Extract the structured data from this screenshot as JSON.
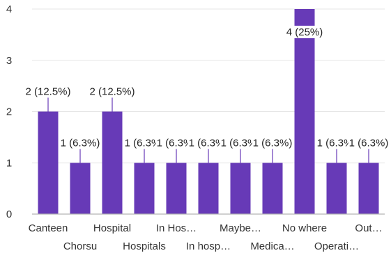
{
  "chart_data": {
    "type": "bar",
    "categories": [
      "Canteen",
      "Chorsu",
      "Hospital",
      "Hospitals",
      "In Hos…",
      "In hosp…",
      "Maybe…",
      "Medica…",
      "No where",
      "Operati…",
      "Out…"
    ],
    "values": [
      2,
      1,
      2,
      1,
      1,
      1,
      1,
      1,
      4,
      1,
      1
    ],
    "data_labels": [
      "2 (12.5%)",
      "1 (6.3%)",
      "2 (12.5%)",
      "1 (6.3%)",
      "1 (6.3%)",
      "1 (6.3%)",
      "1 (6.3%)",
      "1 (6.3%)",
      "4 (25%)",
      "1 (6.3%)",
      "1 (6.3%)"
    ],
    "yticks": [
      0,
      1,
      2,
      3,
      4
    ],
    "ylim": [
      0,
      4
    ],
    "grid": true,
    "colors": {
      "bar": "#673ab7",
      "grid": "#e6e6e6"
    }
  }
}
